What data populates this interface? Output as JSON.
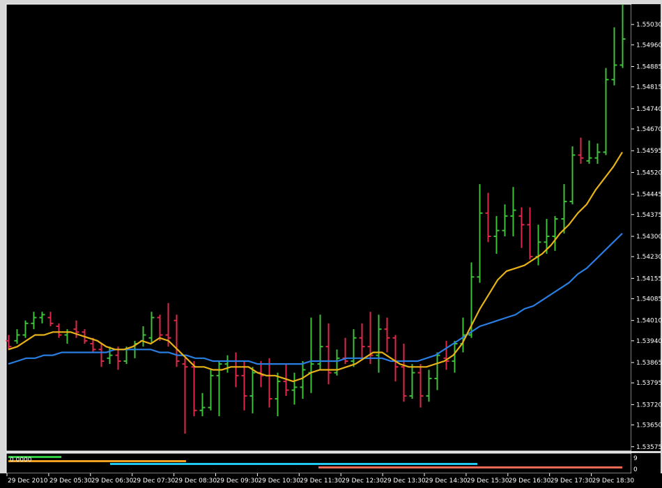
{
  "colors": {
    "background": "#000000",
    "up_bar": "#3fc13a",
    "down_bar": "#e0294a",
    "ma_fast": "#e7b218",
    "ma_slow": "#2a7de1",
    "sub_green": "#2ecc40",
    "sub_orange": "#f0a020",
    "sub_cyan": "#1ec8f0",
    "sub_salmon": "#f06a58"
  },
  "indicator": {
    "value_label": "0.0000",
    "axis_labels": [
      "9",
      "0"
    ]
  },
  "chart_data": {
    "type": "ohlc",
    "symbol_timeframe": "10-minute bars",
    "y_ticks": [
      "1.55030",
      "1.54960",
      "1.54885",
      "1.54815",
      "1.54740",
      "1.54670",
      "1.54595",
      "1.54520",
      "1.54445",
      "1.54375",
      "1.54300",
      "1.54230",
      "1.54155",
      "1.54085",
      "1.54010",
      "1.53940",
      "1.53865",
      "1.53795",
      "1.53720",
      "1.53650",
      "1.53575"
    ],
    "y_range": [
      1.5356,
      1.551
    ],
    "x_ticks": [
      "29 Dec 2010",
      "29 Dec 05:30",
      "29 Dec 06:30",
      "29 Dec 07:30",
      "29 Dec 08:30",
      "29 Dec 09:30",
      "29 Dec 10:30",
      "29 Dec 11:30",
      "29 Dec 12:30",
      "29 Dec 13:30",
      "29 Dec 14:30",
      "29 Dec 15:30",
      "29 Dec 16:30",
      "29 Dec 17:30",
      "29 Dec 18:30"
    ],
    "bars": [
      {
        "o": 1.5394,
        "h": 1.5396,
        "l": 1.5391,
        "c": 1.5392
      },
      {
        "o": 1.5394,
        "h": 1.5398,
        "l": 1.5393,
        "c": 1.5396
      },
      {
        "o": 1.5396,
        "h": 1.5401,
        "l": 1.5395,
        "c": 1.54
      },
      {
        "o": 1.54,
        "h": 1.5404,
        "l": 1.5398,
        "c": 1.5402
      },
      {
        "o": 1.5402,
        "h": 1.5404,
        "l": 1.54,
        "c": 1.5403
      },
      {
        "o": 1.5402,
        "h": 1.5404,
        "l": 1.5399,
        "c": 1.54
      },
      {
        "o": 1.5399,
        "h": 1.54,
        "l": 1.5395,
        "c": 1.5396
      },
      {
        "o": 1.5396,
        "h": 1.5398,
        "l": 1.5393,
        "c": 1.5397
      },
      {
        "o": 1.5398,
        "h": 1.5401,
        "l": 1.5395,
        "c": 1.5397
      },
      {
        "o": 1.5397,
        "h": 1.5398,
        "l": 1.5393,
        "c": 1.5394
      },
      {
        "o": 1.5393,
        "h": 1.5395,
        "l": 1.539,
        "c": 1.5391
      },
      {
        "o": 1.5391,
        "h": 1.5393,
        "l": 1.5385,
        "c": 1.5387
      },
      {
        "o": 1.5388,
        "h": 1.5392,
        "l": 1.5386,
        "c": 1.5389
      },
      {
        "o": 1.5389,
        "h": 1.5392,
        "l": 1.5384,
        "c": 1.5387
      },
      {
        "o": 1.5387,
        "h": 1.5392,
        "l": 1.5386,
        "c": 1.5391
      },
      {
        "o": 1.5391,
        "h": 1.5394,
        "l": 1.5388,
        "c": 1.5393
      },
      {
        "o": 1.5394,
        "h": 1.5399,
        "l": 1.5392,
        "c": 1.5396
      },
      {
        "o": 1.5395,
        "h": 1.5404,
        "l": 1.5393,
        "c": 1.5402
      },
      {
        "o": 1.5402,
        "h": 1.5403,
        "l": 1.5394,
        "c": 1.5396
      },
      {
        "o": 1.5396,
        "h": 1.5407,
        "l": 1.5392,
        "c": 1.5395
      },
      {
        "o": 1.5401,
        "h": 1.5403,
        "l": 1.5385,
        "c": 1.5387
      },
      {
        "o": 1.5386,
        "h": 1.5388,
        "l": 1.5362,
        "c": 1.5385
      },
      {
        "o": 1.5385,
        "h": 1.5387,
        "l": 1.5368,
        "c": 1.537
      },
      {
        "o": 1.537,
        "h": 1.5376,
        "l": 1.5368,
        "c": 1.5371
      },
      {
        "o": 1.5371,
        "h": 1.5384,
        "l": 1.537,
        "c": 1.5382
      },
      {
        "o": 1.5382,
        "h": 1.5387,
        "l": 1.5368,
        "c": 1.5386
      },
      {
        "o": 1.5386,
        "h": 1.5389,
        "l": 1.5383,
        "c": 1.5387
      },
      {
        "o": 1.5387,
        "h": 1.539,
        "l": 1.5378,
        "c": 1.5382
      },
      {
        "o": 1.5382,
        "h": 1.5387,
        "l": 1.537,
        "c": 1.5375
      },
      {
        "o": 1.5375,
        "h": 1.5385,
        "l": 1.5369,
        "c": 1.5383
      },
      {
        "o": 1.5383,
        "h": 1.5387,
        "l": 1.5378,
        "c": 1.5382
      },
      {
        "o": 1.5382,
        "h": 1.5388,
        "l": 1.5371,
        "c": 1.5374
      },
      {
        "o": 1.5374,
        "h": 1.5383,
        "l": 1.5368,
        "c": 1.538
      },
      {
        "o": 1.538,
        "h": 1.5386,
        "l": 1.5375,
        "c": 1.5377
      },
      {
        "o": 1.5377,
        "h": 1.5383,
        "l": 1.5372,
        "c": 1.5378
      },
      {
        "o": 1.5378,
        "h": 1.5387,
        "l": 1.5374,
        "c": 1.5384
      },
      {
        "o": 1.5383,
        "h": 1.5402,
        "l": 1.5376,
        "c": 1.5386
      },
      {
        "o": 1.5386,
        "h": 1.5403,
        "l": 1.5384,
        "c": 1.5392
      },
      {
        "o": 1.5392,
        "h": 1.54,
        "l": 1.5379,
        "c": 1.5383
      },
      {
        "o": 1.5383,
        "h": 1.5391,
        "l": 1.5382,
        "c": 1.5388
      },
      {
        "o": 1.5388,
        "h": 1.5395,
        "l": 1.5386,
        "c": 1.5387
      },
      {
        "o": 1.5387,
        "h": 1.5398,
        "l": 1.5385,
        "c": 1.5395
      },
      {
        "o": 1.5395,
        "h": 1.54,
        "l": 1.5388,
        "c": 1.5392
      },
      {
        "o": 1.5392,
        "h": 1.5404,
        "l": 1.5386,
        "c": 1.5389
      },
      {
        "o": 1.5389,
        "h": 1.5403,
        "l": 1.5383,
        "c": 1.5398
      },
      {
        "o": 1.5398,
        "h": 1.5402,
        "l": 1.539,
        "c": 1.5395
      },
      {
        "o": 1.5395,
        "h": 1.5396,
        "l": 1.538,
        "c": 1.5385
      },
      {
        "o": 1.5385,
        "h": 1.5393,
        "l": 1.5373,
        "c": 1.5375
      },
      {
        "o": 1.5375,
        "h": 1.5386,
        "l": 1.5374,
        "c": 1.5383
      },
      {
        "o": 1.5383,
        "h": 1.5386,
        "l": 1.5371,
        "c": 1.5375
      },
      {
        "o": 1.5375,
        "h": 1.5384,
        "l": 1.5373,
        "c": 1.5381
      },
      {
        "o": 1.5381,
        "h": 1.539,
        "l": 1.5377,
        "c": 1.5389
      },
      {
        "o": 1.5388,
        "h": 1.5394,
        "l": 1.5384,
        "c": 1.5387
      },
      {
        "o": 1.5387,
        "h": 1.5394,
        "l": 1.5383,
        "c": 1.5393
      },
      {
        "o": 1.5393,
        "h": 1.5402,
        "l": 1.539,
        "c": 1.5396
      },
      {
        "o": 1.5396,
        "h": 1.5421,
        "l": 1.5395,
        "c": 1.5416
      },
      {
        "o": 1.5416,
        "h": 1.5448,
        "l": 1.5414,
        "c": 1.5438
      },
      {
        "o": 1.5438,
        "h": 1.5445,
        "l": 1.5428,
        "c": 1.543
      },
      {
        "o": 1.543,
        "h": 1.5437,
        "l": 1.5424,
        "c": 1.5432
      },
      {
        "o": 1.5432,
        "h": 1.5441,
        "l": 1.543,
        "c": 1.5437
      },
      {
        "o": 1.5437,
        "h": 1.5447,
        "l": 1.543,
        "c": 1.5439
      },
      {
        "o": 1.5437,
        "h": 1.544,
        "l": 1.5426,
        "c": 1.5434
      },
      {
        "o": 1.5434,
        "h": 1.544,
        "l": 1.5422,
        "c": 1.5423
      },
      {
        "o": 1.5423,
        "h": 1.5434,
        "l": 1.542,
        "c": 1.5428
      },
      {
        "o": 1.5428,
        "h": 1.5436,
        "l": 1.5424,
        "c": 1.543
      },
      {
        "o": 1.543,
        "h": 1.5437,
        "l": 1.5425,
        "c": 1.5436
      },
      {
        "o": 1.5436,
        "h": 1.5448,
        "l": 1.5431,
        "c": 1.5442
      },
      {
        "o": 1.5442,
        "h": 1.5461,
        "l": 1.5441,
        "c": 1.5458
      },
      {
        "o": 1.5458,
        "h": 1.5464,
        "l": 1.5455,
        "c": 1.5457
      },
      {
        "o": 1.5456,
        "h": 1.5463,
        "l": 1.5455,
        "c": 1.5457
      },
      {
        "o": 1.5457,
        "h": 1.5462,
        "l": 1.5455,
        "c": 1.5459
      },
      {
        "o": 1.5459,
        "h": 1.5488,
        "l": 1.5458,
        "c": 1.5484
      },
      {
        "o": 1.5484,
        "h": 1.5502,
        "l": 1.5482,
        "c": 1.5489
      },
      {
        "o": 1.5489,
        "h": 1.551,
        "l": 1.5488,
        "c": 1.5498
      }
    ],
    "ma_fast": [
      1.5391,
      1.5392,
      1.5394,
      1.5396,
      1.5396,
      1.5397,
      1.5397,
      1.5397,
      1.5396,
      1.5395,
      1.5394,
      1.5392,
      1.5391,
      1.5391,
      1.5392,
      1.5394,
      1.5393,
      1.5395,
      1.5394,
      1.5391,
      1.5388,
      1.5385,
      1.5385,
      1.5384,
      1.5384,
      1.5385,
      1.5385,
      1.5385,
      1.5383,
      1.5382,
      1.5382,
      1.5381,
      1.538,
      1.5381,
      1.5383,
      1.5384,
      1.5384,
      1.5384,
      1.5385,
      1.5386,
      1.5388,
      1.539,
      1.539,
      1.5388,
      1.5386,
      1.5385,
      1.5385,
      1.5385,
      1.5386,
      1.5387,
      1.5389,
      1.5393,
      1.5399,
      1.5405,
      1.541,
      1.5415,
      1.5418,
      1.5419,
      1.542,
      1.5422,
      1.5424,
      1.5427,
      1.5431,
      1.5434,
      1.5438,
      1.5441,
      1.5446,
      1.545,
      1.5454,
      1.5459
    ],
    "ma_slow": [
      1.5386,
      1.5387,
      1.5388,
      1.5388,
      1.5389,
      1.5389,
      1.539,
      1.539,
      1.539,
      1.539,
      1.539,
      1.539,
      1.5391,
      1.5391,
      1.5391,
      1.5391,
      1.5391,
      1.539,
      1.539,
      1.5389,
      1.5389,
      1.5388,
      1.5388,
      1.5387,
      1.5387,
      1.5387,
      1.5387,
      1.5387,
      1.5386,
      1.5386,
      1.5386,
      1.5386,
      1.5386,
      1.5386,
      1.5387,
      1.5387,
      1.5387,
      1.5387,
      1.5388,
      1.5388,
      1.5388,
      1.5388,
      1.5388,
      1.5387,
      1.5387,
      1.5387,
      1.5387,
      1.5388,
      1.5389,
      1.5391,
      1.5393,
      1.5395,
      1.5397,
      1.5399,
      1.54,
      1.5401,
      1.5402,
      1.5403,
      1.5405,
      1.5406,
      1.5408,
      1.541,
      1.5412,
      1.5414,
      1.5417,
      1.5419,
      1.5422,
      1.5425,
      1.5428,
      1.5431
    ],
    "grid": false
  }
}
